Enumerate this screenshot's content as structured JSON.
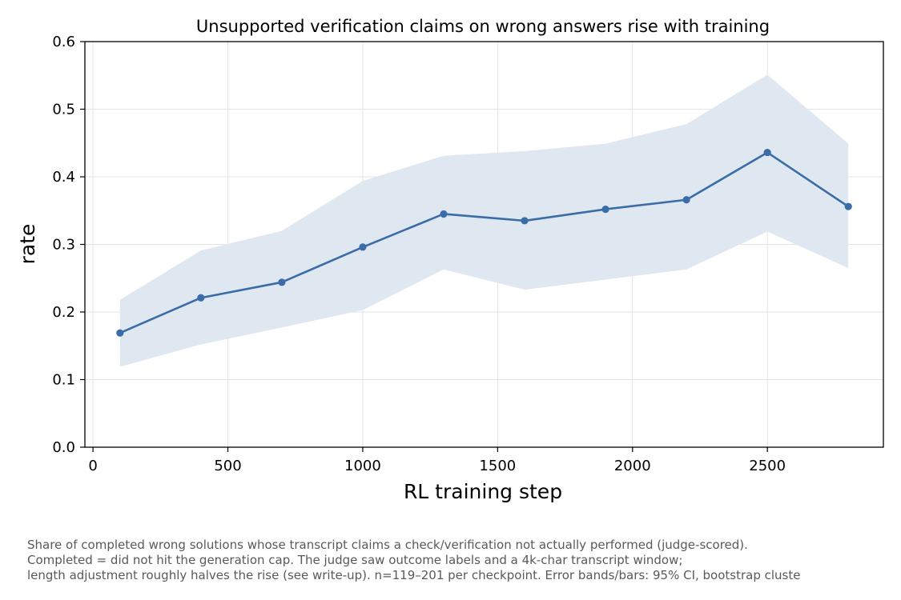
{
  "chart_data": {
    "type": "line",
    "title": "Unsupported verification claims on wrong answers rise with training",
    "xlabel": "RL training step",
    "ylabel": "rate",
    "xlim": [
      -30,
      2930
    ],
    "ylim": [
      0,
      0.6
    ],
    "xticks": [
      0,
      500,
      1000,
      1500,
      2000,
      2500
    ],
    "xtick_labels": [
      "0",
      "500",
      "1000",
      "1500",
      "2000",
      "2500"
    ],
    "yticks": [
      0.0,
      0.1,
      0.2,
      0.3,
      0.4,
      0.5,
      0.6
    ],
    "ytick_labels": [
      "0.0",
      "0.1",
      "0.2",
      "0.3",
      "0.4",
      "0.5",
      "0.6"
    ],
    "grid": true,
    "colors": {
      "line": "#3a6ca8",
      "band": "#dfe7f0",
      "grid": "#e3e3e3",
      "axis": "#000000"
    },
    "series": [
      {
        "x": [
          100,
          400,
          700,
          1000,
          1300,
          1600,
          1900,
          2200,
          2500,
          2800
        ],
        "values": [
          0.169,
          0.221,
          0.244,
          0.296,
          0.345,
          0.335,
          0.352,
          0.366,
          0.436,
          0.356
        ],
        "ci_low": [
          0.119,
          0.152,
          0.177,
          0.203,
          0.263,
          0.233,
          0.248,
          0.263,
          0.319,
          0.265
        ],
        "ci_high": [
          0.218,
          0.291,
          0.32,
          0.394,
          0.431,
          0.438,
          0.449,
          0.478,
          0.551,
          0.449
        ]
      }
    ]
  },
  "caption": {
    "lines": [
      "Share of completed wrong solutions whose transcript claims a check/verification not actually performed (judge-scored).",
      "Completed = did not hit the generation cap. The judge saw outcome labels and a 4k-char transcript window;",
      "length adjustment roughly halves the rise (see write-up). n=119–201 per checkpoint. Error bands/bars: 95% CI, bootstrap cluste"
    ]
  }
}
